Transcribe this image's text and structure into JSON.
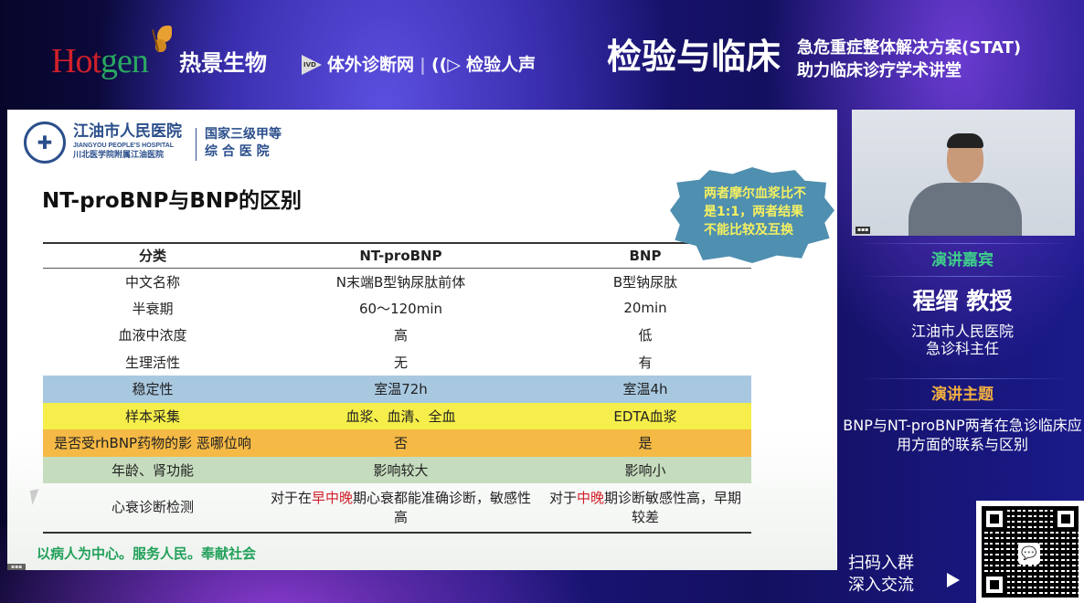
{
  "banner": {
    "sponsor_logo": "Hotgen",
    "sponsor_cn": "热景生物",
    "partner1": "体外诊断网",
    "partner1_badge": "IVD",
    "partner2": "检验人声",
    "event_title": "检验与临床",
    "event_sub1": "急危重症整体解决方案(STAT)",
    "event_sub2": "助力临床诊疗学术讲堂"
  },
  "slide": {
    "hospital_name": "江油市人民医院",
    "hospital_en": "JIANGYOU PEOPLE'S HOSPITAL",
    "hospital_affil": "川北医学院附属江油医院",
    "hospital_grade1": "国家三级甲等",
    "hospital_grade2": "综 合 医 院",
    "title": "NT-proBNP与BNP的区别",
    "callout": "两者摩尔血浆比不是1:1，两者结果不能比较及互换",
    "table": {
      "headers": [
        "分类",
        "NT-proBNP",
        "BNP"
      ],
      "rows": [
        [
          "中文名称",
          "N末端B型钠尿肽前体",
          "B型钠尿肽"
        ],
        [
          "半衰期",
          "60～120min",
          "20min"
        ],
        [
          "血液中浓度",
          "高",
          "低"
        ],
        [
          "生理活性",
          "无",
          "有"
        ],
        [
          "稳定性",
          "室温72h",
          "室温4h"
        ],
        [
          "样本采集",
          "血浆、血清、全血",
          "EDTA血浆"
        ],
        [
          "是否受rhBNP药物的影 恶哪位响",
          "否",
          "是"
        ],
        [
          "年龄、肾功能",
          "影响较大",
          "影响小"
        ]
      ],
      "last_row": {
        "label": "心衰诊断检测",
        "nt_pre": "对于在",
        "nt_red": "早中晚",
        "nt_post": "期心衰都能准确诊断，敏感性高",
        "bnp_pre": "对于",
        "bnp_red": "中晚",
        "bnp_post": "期诊断敏感性高，早期较差"
      },
      "row_colors": {
        "stability": "#a8c8e0",
        "sample": "#f6ee4a",
        "drug": "#f5b945",
        "age": "#c6dcbe"
      }
    },
    "motto": "以病人为中心。服务人民。奉献社会"
  },
  "sidebar": {
    "guest_heading": "演讲嘉宾",
    "guest_name": "程缙 教授",
    "guest_org": "江油市人民医院",
    "guest_title": "急诊科主任",
    "topic_heading": "演讲主题",
    "topic": "BNP与NT-proBNP两者在急诊临床应用方面的联系与区别",
    "scan_line1": "扫码入群",
    "scan_line2": "深入交流"
  }
}
